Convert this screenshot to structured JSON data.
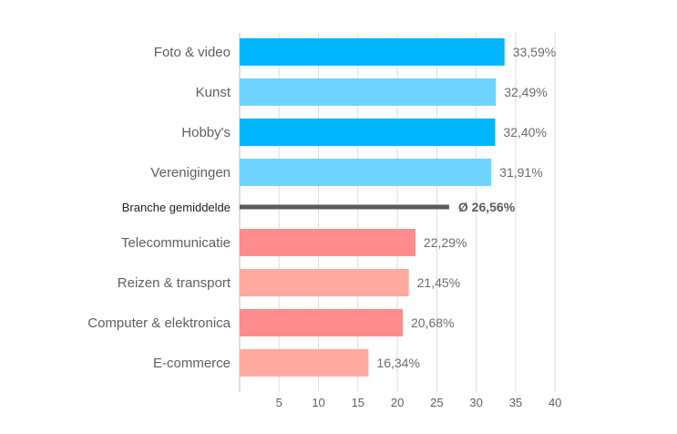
{
  "chart_data": {
    "type": "bar",
    "orientation": "horizontal",
    "categories": [
      "Foto & video",
      "Kunst",
      "Hobby's",
      "Verenigingen",
      "Branche gemiddelde",
      "Telecommunicatie",
      "Reizen & transport",
      "Computer & elektronica",
      "E-commerce"
    ],
    "values": [
      33.59,
      32.49,
      32.4,
      31.91,
      26.56,
      22.29,
      21.45,
      20.68,
      16.34
    ],
    "value_labels": [
      "33,59%",
      "32,49%",
      "32,40%",
      "31,91%",
      "Ø 26,56%",
      "22,29%",
      "21,45%",
      "20,68%",
      "16,34%"
    ],
    "bar_colors": [
      "#00b6ff",
      "#6ed4ff",
      "#00b6ff",
      "#6ed4ff",
      "#5a5a62",
      "#ff8c8c",
      "#ffa99f",
      "#ff8c8c",
      "#ffa99f"
    ],
    "average_index": 4,
    "xlim": [
      0,
      40
    ],
    "xticks": [
      5,
      10,
      15,
      20,
      25,
      30,
      35,
      40
    ],
    "grid": true,
    "title": "",
    "xlabel": "",
    "ylabel": ""
  }
}
